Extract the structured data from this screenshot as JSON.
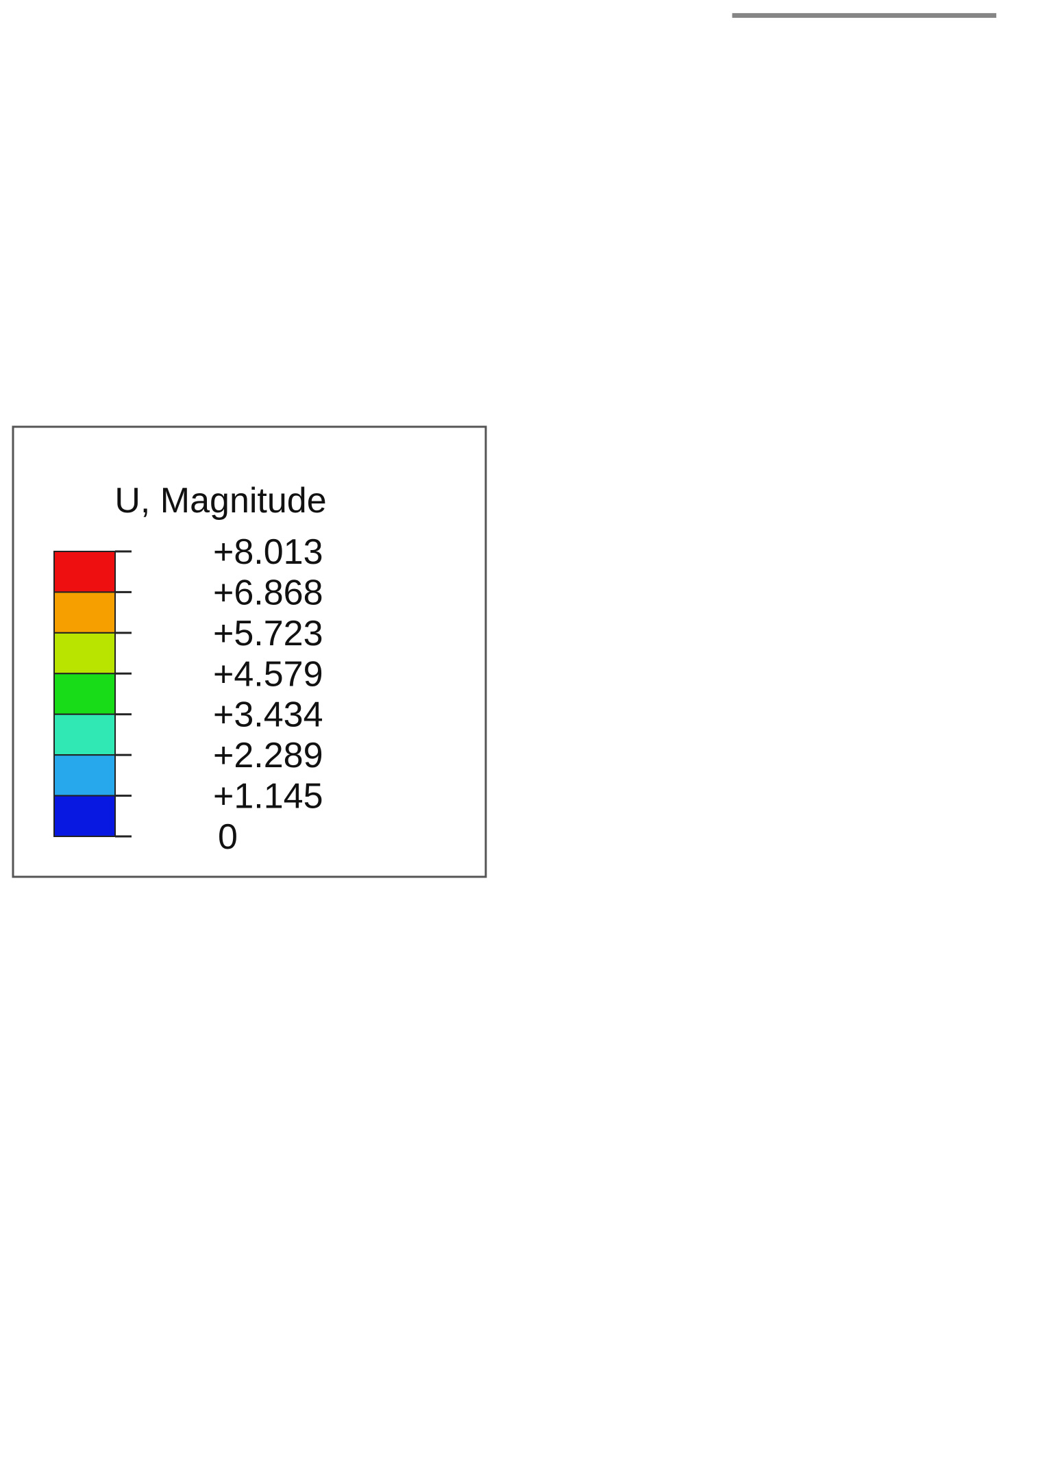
{
  "legend": {
    "title": "U, Magnitude",
    "labels": [
      "+8.013",
      "+6.868",
      "+5.723",
      "+4.579",
      "+3.434",
      "+2.289",
      "+1.145",
      "0"
    ],
    "colors": [
      "#ee1010",
      "#f5a000",
      "#b8e400",
      "#18dc18",
      "#30e8b4",
      "#28a8ec",
      "#0818e0"
    ]
  }
}
